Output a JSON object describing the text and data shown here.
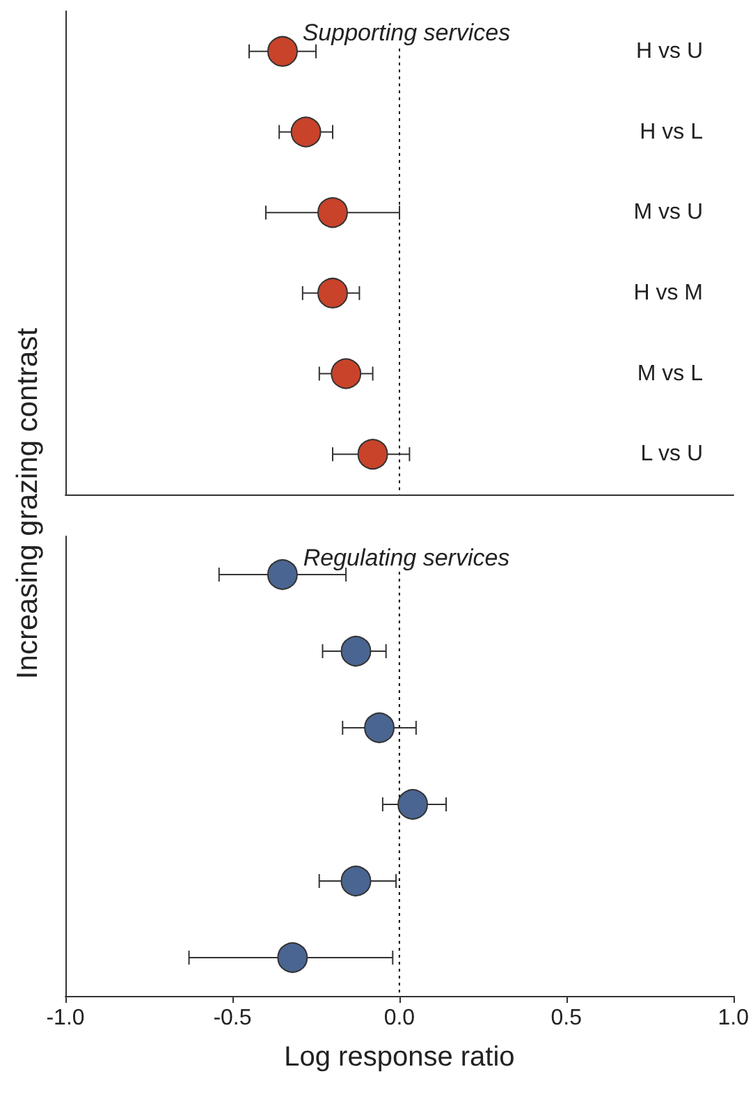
{
  "chart_data": [
    {
      "type": "scatter",
      "orientation": "horizontal",
      "title": "Supporting services",
      "ylabel": "Increasing grazing contrast",
      "categories": [
        "H vs U",
        "H vs L",
        "M vs U",
        "H vs M",
        "M vs L",
        "L vs U"
      ],
      "series": [
        {
          "color": "#c8432a",
          "values": [
            -0.35,
            -0.28,
            -0.2,
            -0.2,
            -0.16,
            -0.08
          ],
          "errors": [
            [
              -0.45,
              -0.25
            ],
            [
              -0.36,
              -0.2
            ],
            [
              -0.4,
              0.0
            ],
            [
              -0.29,
              -0.12
            ],
            [
              -0.24,
              -0.08
            ],
            [
              -0.2,
              0.03
            ]
          ]
        }
      ],
      "xlim": [
        -1.0,
        1.0
      ],
      "ref_lines": [
        {
          "axis": "x",
          "value": 0,
          "line_style": "dotted",
          "color": "#000000"
        }
      ],
      "tick_labels": "y",
      "marker": "circle",
      "grid": false
    },
    {
      "type": "scatter",
      "orientation": "horizontal",
      "title": "Regulating services",
      "xlabel": "Log response ratio",
      "categories": [
        null,
        null,
        null,
        null,
        null,
        null
      ],
      "series": [
        {
          "color": "#4a6591",
          "values": [
            -0.35,
            -0.13,
            -0.06,
            0.04,
            -0.13,
            -0.32
          ],
          "errors": [
            [
              -0.54,
              -0.16
            ],
            [
              -0.23,
              -0.04
            ],
            [
              -0.17,
              0.05
            ],
            [
              -0.05,
              0.14
            ],
            [
              -0.24,
              -0.01
            ],
            [
              -0.63,
              -0.02
            ]
          ]
        }
      ],
      "xlim": [
        -1.0,
        1.0
      ],
      "xticks": [
        {
          "value": -1.0,
          "label": "-1.0"
        },
        -0.5,
        {
          "value": 0.0,
          "label": "0.0"
        },
        0.5,
        {
          "value": 1.0,
          "label": "1.0"
        }
      ],
      "ref_lines": [
        {
          "axis": "x",
          "value": 0,
          "line_style": "dotted",
          "color": "#000000"
        }
      ],
      "tick_labels": "x",
      "marker": "circle",
      "grid": false
    }
  ]
}
